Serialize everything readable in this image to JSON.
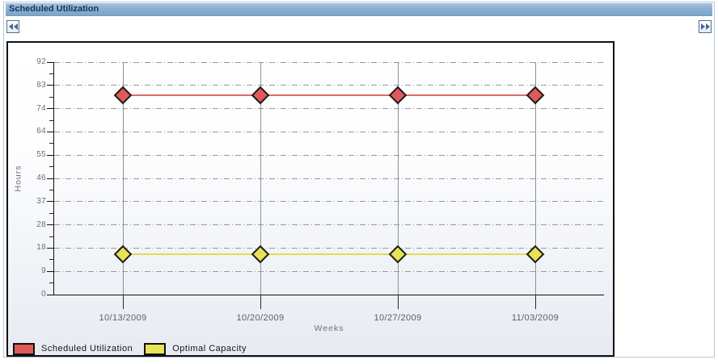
{
  "header": {
    "title": "Scheduled Utilization"
  },
  "toolbar": {
    "prev_icon": "double-chevron-left",
    "next_icon": "double-chevron-right"
  },
  "chart_data": {
    "type": "line",
    "title": "Scheduled Utilization",
    "x": [
      "10/13/2009",
      "10/20/2009",
      "10/27/2009",
      "11/03/2009"
    ],
    "series": [
      {
        "name": "Scheduled Utilization",
        "values": [
          79,
          79,
          79,
          79
        ],
        "marker": "diamond",
        "fill": "#e05a5a",
        "line": "#dd6e66"
      },
      {
        "name": "Optimal Capacity",
        "values": [
          16,
          16,
          16,
          16
        ],
        "marker": "diamond",
        "fill": "#e7e257",
        "line": "#e0db55"
      }
    ],
    "xlabel": "Weeks",
    "ylabel": "Hours",
    "ylim": [
      0,
      92
    ],
    "y_ticks": [
      0,
      9,
      18,
      28,
      37,
      46,
      55,
      64,
      74,
      83,
      92
    ],
    "grid": true,
    "legend_position": "bottom-left"
  },
  "colors": {
    "header_text": "#17365e",
    "header_gradient_top": "#a8c1db",
    "header_gradient_bottom": "#7ba4ca",
    "panel_border": "#b6c9da",
    "chart_border": "#111111",
    "axis": "#111111",
    "h_gridline": "#999999",
    "v_gridline": "#8d9298",
    "tick_label": "#69707a"
  }
}
